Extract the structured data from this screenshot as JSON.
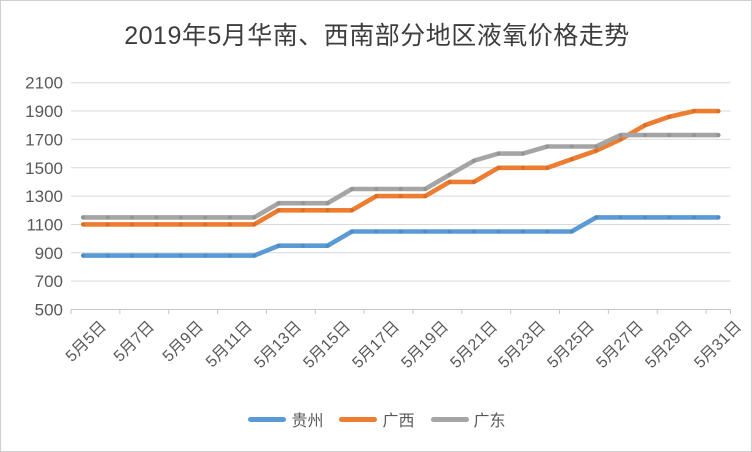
{
  "page": {
    "background": "#ffffff",
    "border_color": "#cfcfcf"
  },
  "chart_data": {
    "type": "line",
    "title": "2019年5月华南、西南部分地区液氧价格走势",
    "xlabel": "",
    "ylabel": "",
    "ylim": [
      500,
      2100
    ],
    "ytick_step": 200,
    "yticks": [
      2100,
      1900,
      1700,
      1500,
      1300,
      1100,
      900,
      700,
      500
    ],
    "grid": true,
    "legend_position": "bottom",
    "title_color": "#3d3d3d",
    "axis_label_color": "#595959",
    "gridline_color": "#d9d9d9",
    "axis_line_color": "#c6c6c6",
    "x": [
      "5月5日",
      "5月6日",
      "5月7日",
      "5月8日",
      "5月9日",
      "5月10日",
      "5月11日",
      "5月12日",
      "5月13日",
      "5月14日",
      "5月15日",
      "5月16日",
      "5月17日",
      "5月18日",
      "5月19日",
      "5月20日",
      "5月21日",
      "5月22日",
      "5月23日",
      "5月24日",
      "5月25日",
      "5月26日",
      "5月27日",
      "5月28日",
      "5月29日",
      "5月30日",
      "5月31日"
    ],
    "x_tick_labels": [
      "5月5日",
      "5月7日",
      "5月9日",
      "5月11日",
      "5月13日",
      "5月15日",
      "5月17日",
      "5月19日",
      "5月21日",
      "5月23日",
      "5月25日",
      "5月27日",
      "5月29日",
      "5月31日"
    ],
    "series": [
      {
        "name": "贵州",
        "color": "#5b9bd5",
        "values": [
          880,
          880,
          880,
          880,
          880,
          880,
          880,
          880,
          950,
          950,
          950,
          1050,
          1050,
          1050,
          1050,
          1050,
          1050,
          1050,
          1050,
          1050,
          1050,
          1150,
          1150,
          1150,
          1150,
          1150,
          1150
        ]
      },
      {
        "name": "广西",
        "color": "#ed7d31",
        "values": [
          1100,
          1100,
          1100,
          1100,
          1100,
          1100,
          1100,
          1100,
          1200,
          1200,
          1200,
          1200,
          1300,
          1300,
          1300,
          1400,
          1400,
          1500,
          1500,
          1500,
          1560,
          1620,
          1700,
          1800,
          1860,
          1900,
          1900
        ]
      },
      {
        "name": "广东",
        "color": "#a5a5a5",
        "values": [
          1150,
          1150,
          1150,
          1150,
          1150,
          1150,
          1150,
          1150,
          1250,
          1250,
          1250,
          1350,
          1350,
          1350,
          1350,
          1450,
          1550,
          1600,
          1600,
          1650,
          1650,
          1650,
          1730,
          1730,
          1730,
          1730,
          1730
        ]
      }
    ]
  }
}
